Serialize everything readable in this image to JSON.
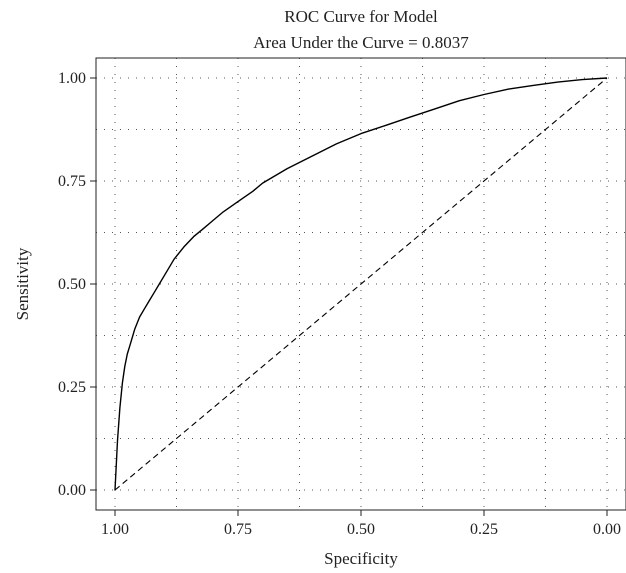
{
  "chart_data": {
    "type": "line",
    "title": "ROC Curve for Model",
    "subtitle": "Area Under the Curve = 0.8037",
    "xlabel": "Specificity",
    "ylabel": "Sensitivity",
    "xlim": [
      1.0,
      0.0
    ],
    "ylim": [
      0.0,
      1.0
    ],
    "x_reversed": true,
    "x_ticks": [
      1.0,
      0.75,
      0.5,
      0.25,
      0.0
    ],
    "x_tick_labels": [
      "1.00",
      "0.75",
      "0.50",
      "0.25",
      "0.00"
    ],
    "y_ticks": [
      0.0,
      0.25,
      0.5,
      0.75,
      1.0
    ],
    "y_tick_labels": [
      "0.00",
      "0.25",
      "0.50",
      "0.75",
      "1.00"
    ],
    "grid": true,
    "grid_style": "dotted",
    "series": [
      {
        "line_style": "solid",
        "color": "#000000",
        "x": [
          1.0,
          0.995,
          0.99,
          0.985,
          0.98,
          0.975,
          0.97,
          0.96,
          0.95,
          0.94,
          0.93,
          0.92,
          0.91,
          0.9,
          0.88,
          0.86,
          0.84,
          0.82,
          0.8,
          0.78,
          0.75,
          0.72,
          0.7,
          0.65,
          0.6,
          0.55,
          0.5,
          0.45,
          0.4,
          0.35,
          0.3,
          0.25,
          0.2,
          0.15,
          0.1,
          0.05,
          0.0
        ],
        "y": [
          0.0,
          0.12,
          0.2,
          0.26,
          0.3,
          0.33,
          0.35,
          0.39,
          0.42,
          0.44,
          0.46,
          0.48,
          0.5,
          0.52,
          0.56,
          0.59,
          0.615,
          0.635,
          0.655,
          0.675,
          0.7,
          0.725,
          0.745,
          0.78,
          0.81,
          0.84,
          0.865,
          0.885,
          0.905,
          0.925,
          0.945,
          0.96,
          0.973,
          0.982,
          0.99,
          0.996,
          1.0
        ]
      },
      {
        "line_style": "dashed",
        "color": "#000000",
        "x": [
          1.0,
          0.0
        ],
        "y": [
          0.0,
          1.0
        ]
      }
    ]
  }
}
